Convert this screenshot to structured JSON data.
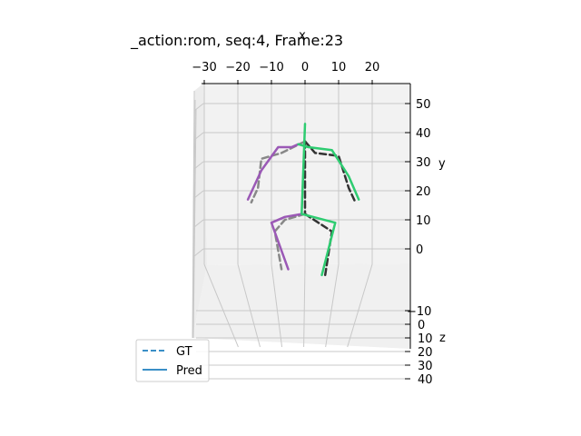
{
  "chart_data": {
    "type": "line",
    "projection": "3d",
    "title": "_action:rom, seq:4,   Frame:23",
    "axes": {
      "x": {
        "label": "x",
        "ticks": [
          -30,
          -20,
          -10,
          0,
          10,
          20
        ],
        "range": [
          -34,
          31
        ]
      },
      "y": {
        "label": "y",
        "ticks": [
          0,
          10,
          20,
          30,
          40,
          50
        ],
        "range": [
          -10,
          57
        ]
      },
      "z": {
        "label": "z",
        "ticks": [
          -10,
          0,
          10,
          20,
          30,
          40
        ],
        "range": [
          -12,
          40
        ]
      }
    },
    "grid": true,
    "legend_position": "bottom-left",
    "legend": [
      {
        "label": "GT",
        "style": "dashed",
        "color": "#3a8fc7"
      },
      {
        "label": "Pred",
        "style": "solid",
        "color": "#3a8fc7"
      }
    ],
    "series": [
      {
        "name": "GT",
        "style": "dashed",
        "segments": [
          {
            "color": "#888888",
            "points": [
              [
                0,
                37
              ],
              [
                -7,
                33
              ],
              [
                -13,
                31
              ],
              [
                -14,
                21
              ],
              [
                -16,
                16
              ]
            ]
          },
          {
            "color": "#333333",
            "points": [
              [
                0,
                37
              ],
              [
                3,
                33
              ],
              [
                10,
                32
              ],
              [
                13,
                21
              ],
              [
                15,
                16
              ]
            ]
          },
          {
            "color": "#333333",
            "points": [
              [
                0,
                37
              ],
              [
                0,
                12
              ]
            ]
          },
          {
            "color": "#888888",
            "points": [
              [
                0,
                12
              ],
              [
                -6,
                10
              ],
              [
                -9,
                6
              ],
              [
                -7,
                -7
              ]
            ]
          },
          {
            "color": "#333333",
            "points": [
              [
                0,
                12
              ],
              [
                8,
                6
              ],
              [
                6,
                -9
              ]
            ]
          }
        ]
      },
      {
        "name": "Pred",
        "style": "solid",
        "segments": [
          {
            "color": "#9b59b6",
            "points": [
              [
                -2,
                36
              ],
              [
                -4,
                35
              ],
              [
                -8,
                35
              ],
              [
                -13,
                27
              ],
              [
                -17,
                17
              ]
            ]
          },
          {
            "color": "#2ecc71",
            "points": [
              [
                -2,
                36
              ],
              [
                1,
                35
              ],
              [
                8,
                34
              ],
              [
                13,
                25
              ],
              [
                16,
                17
              ]
            ]
          },
          {
            "color": "#2ecc71",
            "points": [
              [
                0,
                43
              ],
              [
                -1,
                12
              ]
            ]
          },
          {
            "color": "#9b59b6",
            "points": [
              [
                -1,
                12
              ],
              [
                -6,
                11
              ],
              [
                -10,
                9
              ],
              [
                -5,
                -7
              ]
            ]
          },
          {
            "color": "#2ecc71",
            "points": [
              [
                -1,
                12
              ],
              [
                9,
                9
              ],
              [
                5,
                -9
              ]
            ]
          }
        ]
      }
    ]
  }
}
